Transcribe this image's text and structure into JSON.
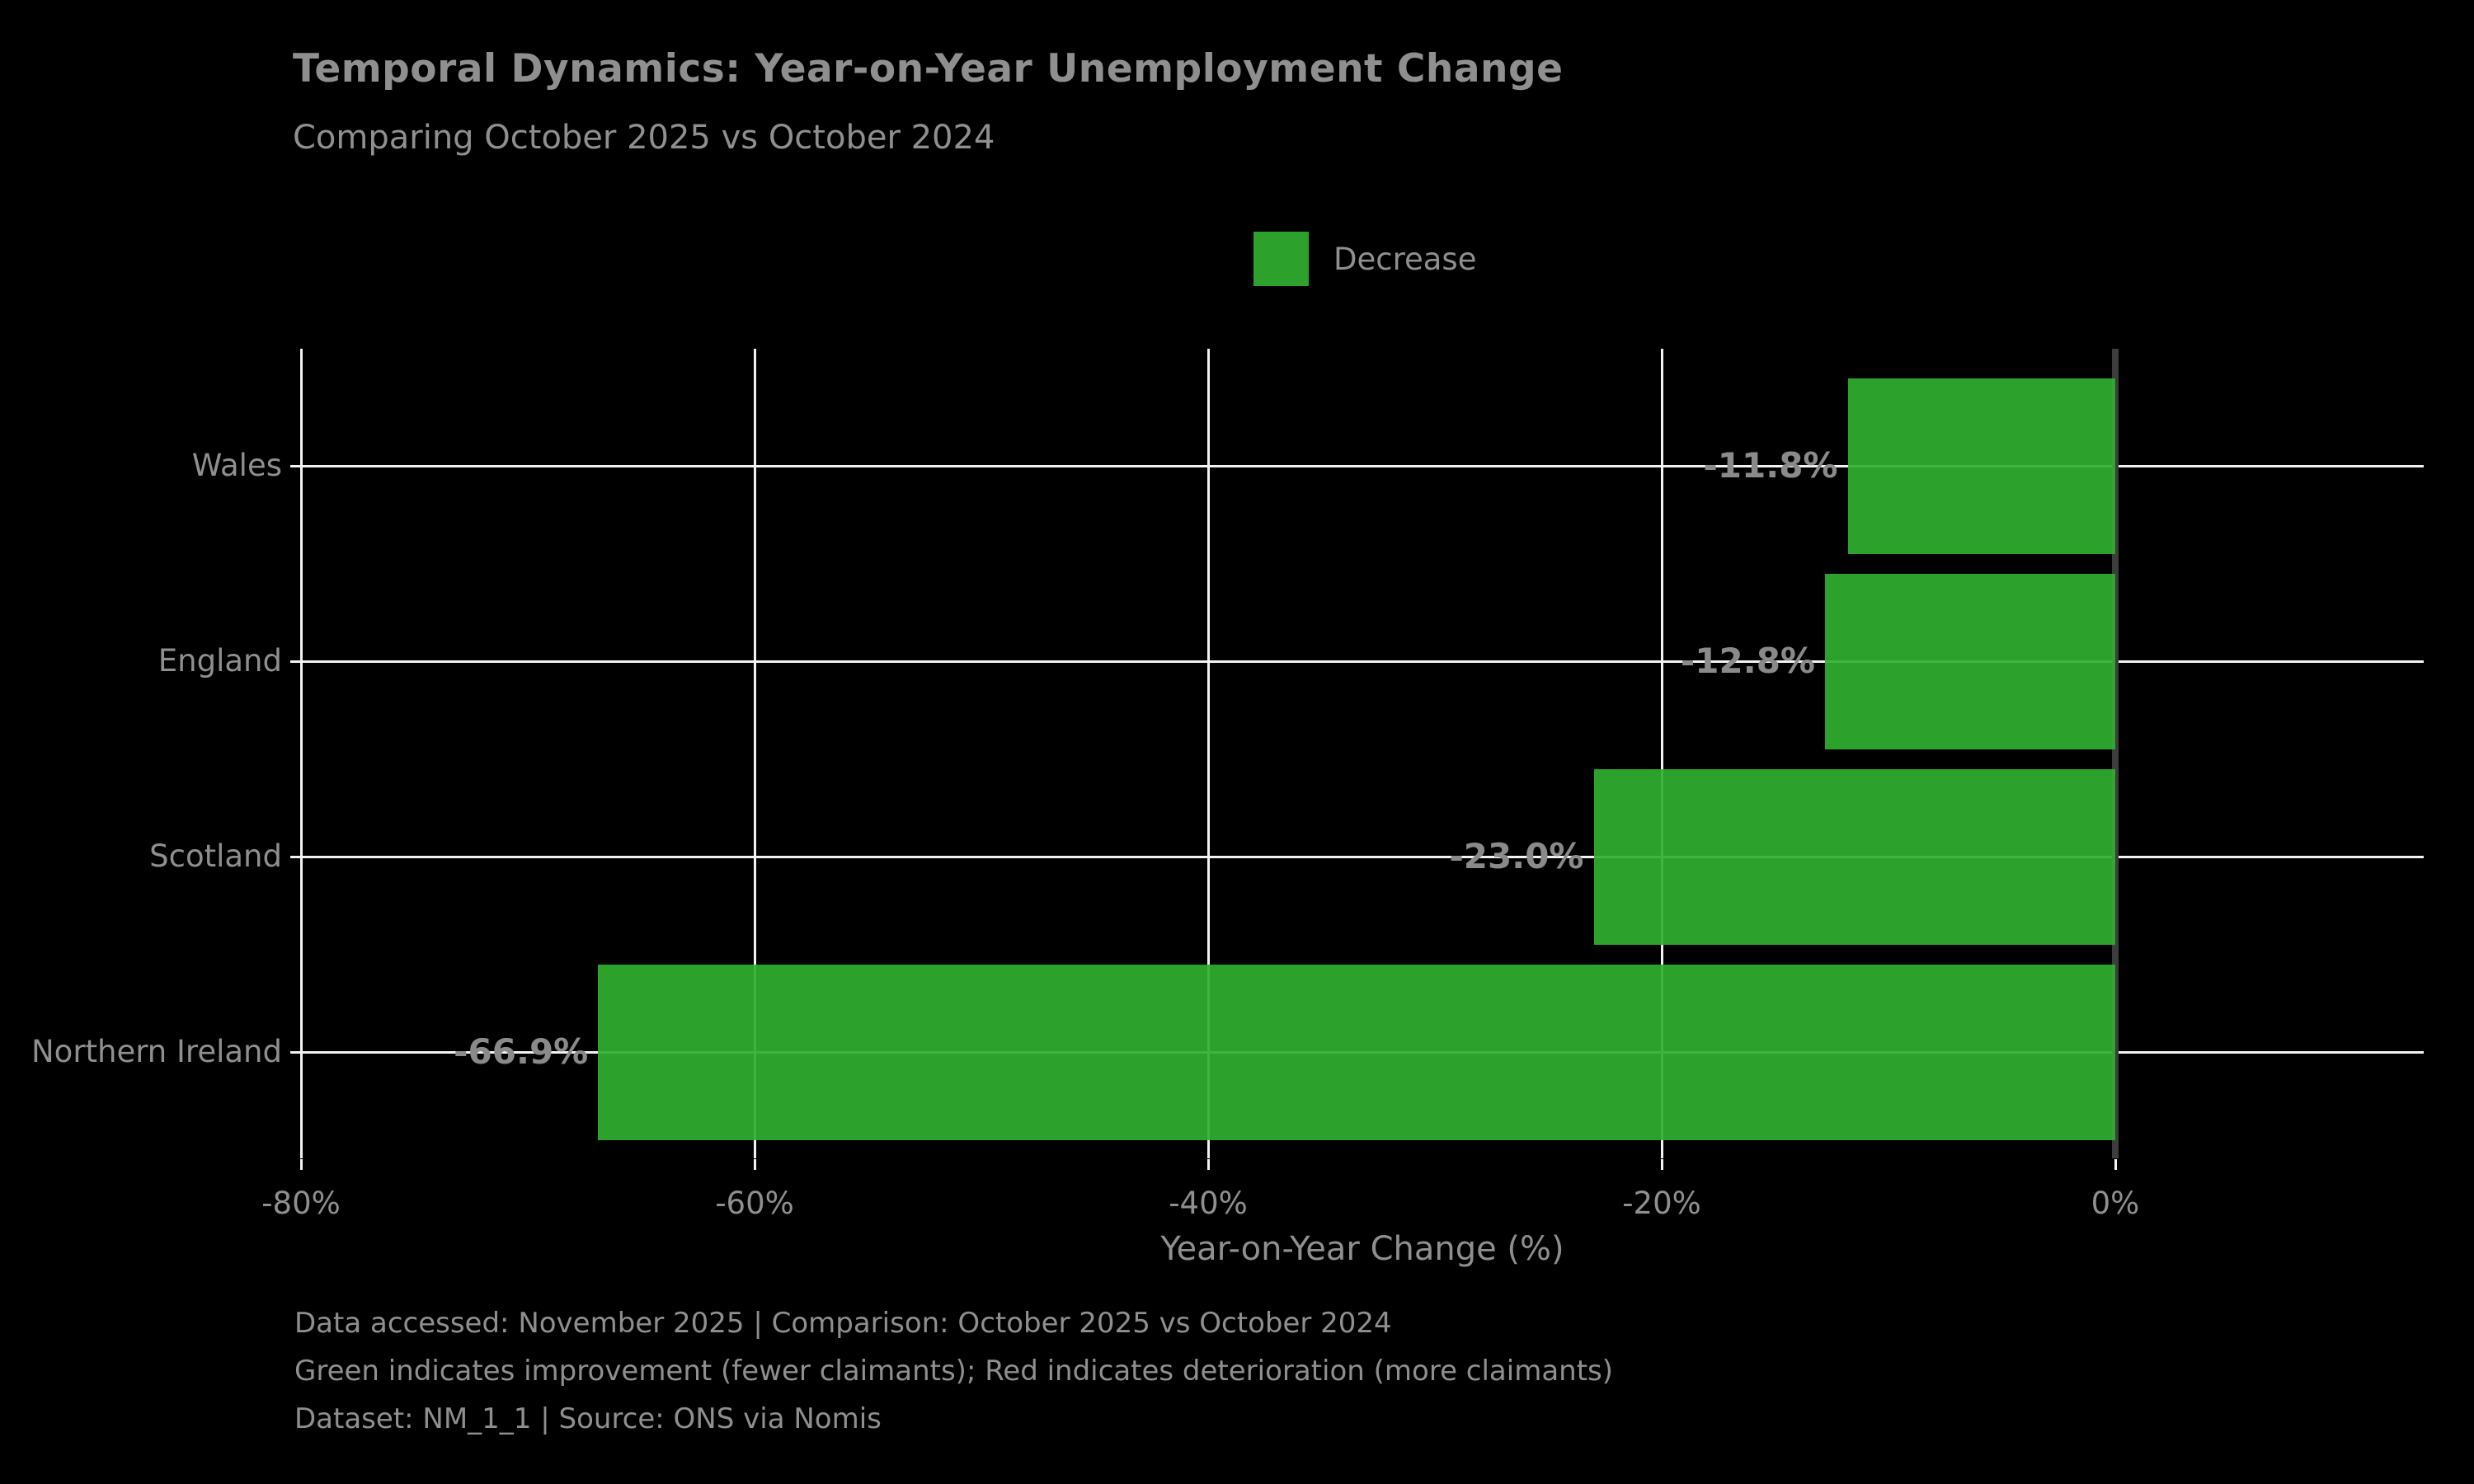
{
  "header": {
    "title": "Temporal Dynamics: Year-on-Year Unemployment Change",
    "subtitle": "Comparing October 2025 vs October 2024"
  },
  "legend": {
    "label": "Decrease",
    "color": "#2ca02c",
    "position": "top-center",
    "frame": false
  },
  "chart_data": {
    "type": "bar",
    "orientation": "horizontal",
    "categories": [
      "Wales",
      "England",
      "Scotland",
      "Northern Ireland"
    ],
    "values": [
      -11.8,
      -12.8,
      -23.0,
      -66.9
    ],
    "value_labels": [
      "-11.8%",
      "-12.8%",
      "-23.0%",
      "-66.9%"
    ],
    "series_name": "Decrease",
    "title": "Temporal Dynamics: Year-on-Year Unemployment Change",
    "subtitle": "Comparing October 2025 vs October 2024",
    "xlabel": "Year-on-Year Change (%)",
    "ylabel": "",
    "x_ticks": [
      -80,
      -60,
      -40,
      -20,
      0
    ],
    "x_tick_labels": [
      "-80%",
      "-60%",
      "-40%",
      "-20%",
      "0%"
    ],
    "xlim": [
      -80,
      13.6
    ],
    "grid": true,
    "bar_color": "#2ca02c",
    "zero_line_color": "#3d3d3d",
    "background": "#000000"
  },
  "footer": {
    "lines": [
      "Data accessed: November 2025 | Comparison: October 2025 vs October 2024",
      "Green indicates improvement (fewer claimants); Red indicates deterioration (more claimants)",
      "Dataset: NM_1_1 | Source: ONS via Nomis"
    ]
  },
  "colors": {
    "background": "#000000",
    "bar_green": "#2ca02c",
    "gridline": "#f2f2f2",
    "zero_line": "#3d3d3d",
    "text_gray": "#8f8f8f"
  }
}
